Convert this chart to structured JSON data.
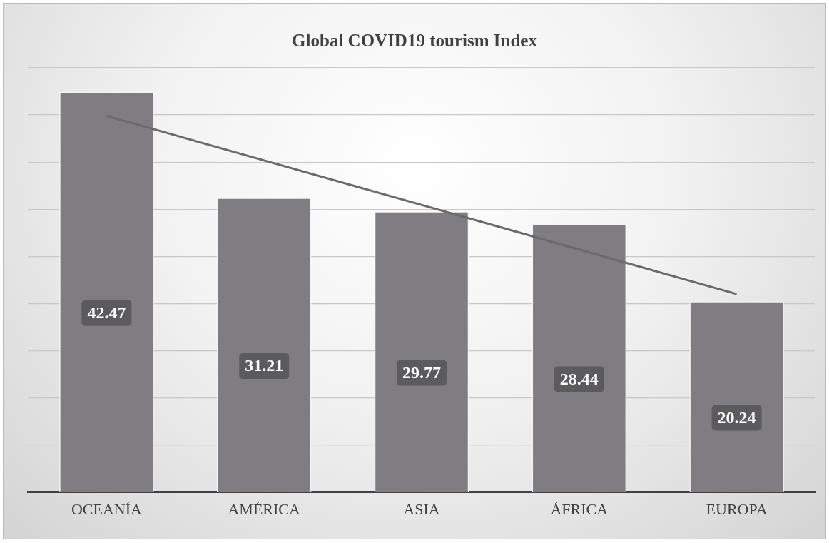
{
  "chart_data": {
    "type": "bar",
    "title": "Global COVID19 tourism Index",
    "categories": [
      "OCEANÍA",
      "AMÉRICA",
      "ASIA",
      "ÁFRICA",
      "EUROPA"
    ],
    "series": [
      {
        "color": "#807d82",
        "values": [
          42.47,
          31.21,
          29.77,
          28.44,
          20.24
        ],
        "value_labels": [
          "42.47",
          "31.21",
          "29.77",
          "28.44",
          "20.24"
        ]
      },
      {
        "type": "line",
        "color": "#6a696b",
        "x": [
          "OCEANÍA",
          "EUROPA"
        ],
        "values": [
          39.9,
          21.0
        ]
      }
    ],
    "ylim": [
      0,
      45
    ],
    "yticks": [
      {
        "value": 0,
        "label": null
      },
      {
        "value": 5,
        "label": null
      },
      {
        "value": 10,
        "label": null
      },
      {
        "value": 15,
        "label": null
      },
      {
        "value": 20,
        "label": null
      },
      {
        "value": 25,
        "label": null
      },
      {
        "value": 30,
        "label": null
      },
      {
        "value": 35,
        "label": null
      },
      {
        "value": 40,
        "label": null
      },
      {
        "value": 45,
        "label": null
      }
    ],
    "grid": "y",
    "legend": false,
    "tick_labels": "x",
    "marker": "none"
  }
}
